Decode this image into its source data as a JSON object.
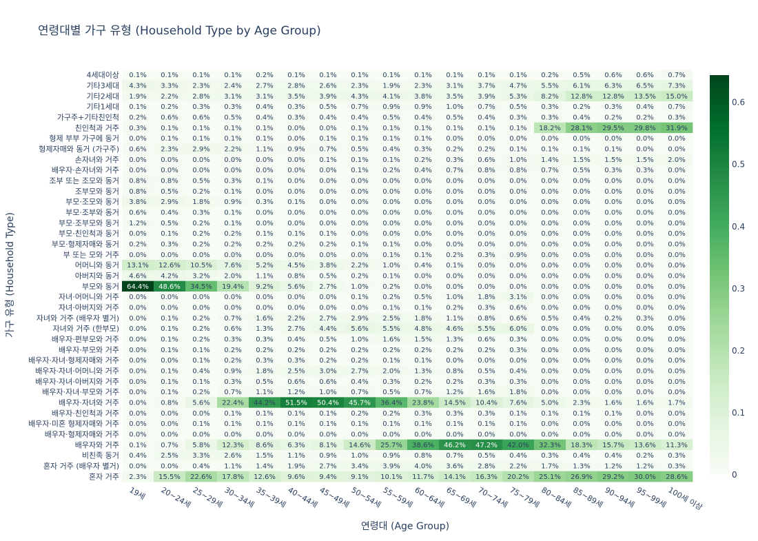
{
  "chart_data": {
    "type": "heatmap",
    "title": "연령대별 가구 유형 (Household Type by Age Group)",
    "xlabel": "연령대 (Age Group)",
    "ylabel": "가구 유형 (Household Type)",
    "x": [
      "19세",
      "20~24세",
      "25~29세",
      "30~34세",
      "35~39세",
      "40~44세",
      "45~49세",
      "50~54세",
      "55~59세",
      "60~64세",
      "65~69세",
      "70~74세",
      "75~79세",
      "80~84세",
      "85~89세",
      "90~94세",
      "95~99세",
      "100세 이상"
    ],
    "y": [
      "4세대이상",
      "기타3세대",
      "기타2세대",
      "기타1세대",
      "가구주+기타친인척",
      "친인척과 거주",
      "형제 부부 가구에 동거",
      "형제자매와 동거 (가구주)",
      "손자녀와 거주",
      "배우자·손자녀와 거주",
      "조부 또는 조모와 동거",
      "조부모와 동거",
      "부모·조모와 동거",
      "부모·조부와 동거",
      "부모·조부모와 동거",
      "부모·친인척과 동거",
      "부모·형제자매와 동거",
      "부 또는 모와 거주",
      "어머니와 동거",
      "아버지와 동거",
      "부모와 동거",
      "자녀·어머니와 거주",
      "자녀·아버지와 거주",
      "자녀와 거주 (배우자 별거)",
      "자녀와 거주 (한부모)",
      "배우자·편부모와 거주",
      "배우자·부모와 거주",
      "배우자·자녀·형제자매와 거주",
      "배우자·자녀·어머니와 거주",
      "배우자·자녀·아버지와 거주",
      "배우자·자녀·부모와 거주",
      "배우자·자녀와 거주",
      "배우자·친인척과 거주",
      "배우자·미혼 형제자매와 거주",
      "배우자·형제자매와 거주",
      "배우자와 거주",
      "비친족 동거",
      "혼자 거주 (배우자 별거)",
      "혼자 거주"
    ],
    "z": [
      [
        0.1,
        0.1,
        0.1,
        0.1,
        0.2,
        0.1,
        0.1,
        0.1,
        0.1,
        0.1,
        0.1,
        0.1,
        0.1,
        0.2,
        0.5,
        0.6,
        0.6,
        0.7
      ],
      [
        4.3,
        3.3,
        2.3,
        2.4,
        2.7,
        2.8,
        2.6,
        2.3,
        1.9,
        2.3,
        3.1,
        3.7,
        4.7,
        5.5,
        6.1,
        6.3,
        6.5,
        7.3
      ],
      [
        1.9,
        2.2,
        2.8,
        3.1,
        3.1,
        3.5,
        3.9,
        4.3,
        4.1,
        3.8,
        3.5,
        3.9,
        5.3,
        8.2,
        12.8,
        12.8,
        13.5,
        15.0
      ],
      [
        0.1,
        0.2,
        0.3,
        0.3,
        0.4,
        0.3,
        0.5,
        0.7,
        0.9,
        0.9,
        1.0,
        0.7,
        0.5,
        0.3,
        0.2,
        0.3,
        0.4,
        0.7
      ],
      [
        0.2,
        0.6,
        0.6,
        0.5,
        0.4,
        0.3,
        0.4,
        0.4,
        0.5,
        0.4,
        0.5,
        0.4,
        0.3,
        0.3,
        0.4,
        0.2,
        0.2,
        0.3
      ],
      [
        0.3,
        0.1,
        0.1,
        0.1,
        0.1,
        0.0,
        0.0,
        0.1,
        0.1,
        0.1,
        0.1,
        0.1,
        0.1,
        18.2,
        28.1,
        29.5,
        29.8,
        31.9
      ],
      [
        0.0,
        0.1,
        0.1,
        0.1,
        0.1,
        0.0,
        0.1,
        0.1,
        0.1,
        0.1,
        0.0,
        0.0,
        0.0,
        0.0,
        0.0,
        0.0,
        0.0,
        0.0
      ],
      [
        0.6,
        2.3,
        2.9,
        2.2,
        1.1,
        0.9,
        0.7,
        0.5,
        0.4,
        0.3,
        0.2,
        0.2,
        0.1,
        0.1,
        0.1,
        0.1,
        0.0,
        0.0
      ],
      [
        0.0,
        0.0,
        0.0,
        0.0,
        0.0,
        0.0,
        0.1,
        0.1,
        0.1,
        0.2,
        0.3,
        0.6,
        1.0,
        1.4,
        1.5,
        1.5,
        1.5,
        2.0
      ],
      [
        0.0,
        0.0,
        0.0,
        0.0,
        0.0,
        0.0,
        0.0,
        0.1,
        0.2,
        0.4,
        0.7,
        0.8,
        0.8,
        0.7,
        0.5,
        0.3,
        0.3,
        0.0
      ],
      [
        0.8,
        0.8,
        0.5,
        0.3,
        0.1,
        0.0,
        0.0,
        0.0,
        0.0,
        0.0,
        0.0,
        0.0,
        0.0,
        0.0,
        0.0,
        0.0,
        0.0,
        0.0
      ],
      [
        0.8,
        0.5,
        0.2,
        0.1,
        0.0,
        0.0,
        0.0,
        0.0,
        0.0,
        0.0,
        0.0,
        0.0,
        0.0,
        0.0,
        0.0,
        0.0,
        0.0,
        0.0
      ],
      [
        3.8,
        2.9,
        1.8,
        0.9,
        0.3,
        0.1,
        0.0,
        0.0,
        0.0,
        0.0,
        0.0,
        0.0,
        0.0,
        0.0,
        0.0,
        0.0,
        0.0,
        0.0
      ],
      [
        0.6,
        0.4,
        0.3,
        0.1,
        0.0,
        0.0,
        0.0,
        0.0,
        0.0,
        0.0,
        0.0,
        0.0,
        0.0,
        0.0,
        0.0,
        0.0,
        0.0,
        0.0
      ],
      [
        1.2,
        0.5,
        0.2,
        0.1,
        0.0,
        0.0,
        0.0,
        0.0,
        0.0,
        0.0,
        0.0,
        0.0,
        0.0,
        0.0,
        0.0,
        0.0,
        0.0,
        0.0
      ],
      [
        0.0,
        0.1,
        0.2,
        0.2,
        0.1,
        0.1,
        0.1,
        0.0,
        0.0,
        0.0,
        0.0,
        0.0,
        0.0,
        0.0,
        0.0,
        0.0,
        0.0,
        0.0
      ],
      [
        0.2,
        0.3,
        0.2,
        0.2,
        0.2,
        0.2,
        0.2,
        0.1,
        0.1,
        0.0,
        0.0,
        0.0,
        0.0,
        0.0,
        0.0,
        0.0,
        0.0,
        0.0
      ],
      [
        0.0,
        0.0,
        0.0,
        0.0,
        0.0,
        0.0,
        0.0,
        0.0,
        0.1,
        0.1,
        0.2,
        0.3,
        0.9,
        0.0,
        0.0,
        0.0,
        0.0,
        0.0
      ],
      [
        13.1,
        12.6,
        10.5,
        7.6,
        5.2,
        4.5,
        3.8,
        2.2,
        1.0,
        0.4,
        0.1,
        0.0,
        0.0,
        0.0,
        0.0,
        0.0,
        0.0,
        0.0
      ],
      [
        4.6,
        4.2,
        3.2,
        2.0,
        1.1,
        0.8,
        0.5,
        0.2,
        0.1,
        0.0,
        0.0,
        0.0,
        0.0,
        0.0,
        0.0,
        0.0,
        0.0,
        0.0
      ],
      [
        64.4,
        48.6,
        34.5,
        19.4,
        9.2,
        5.6,
        2.7,
        1.0,
        0.2,
        0.0,
        0.0,
        0.0,
        0.0,
        0.0,
        0.0,
        0.0,
        0.0,
        0.0
      ],
      [
        0.0,
        0.0,
        0.0,
        0.0,
        0.0,
        0.0,
        0.0,
        0.1,
        0.2,
        0.5,
        1.0,
        1.8,
        3.1,
        0.0,
        0.0,
        0.0,
        0.0,
        0.0
      ],
      [
        0.0,
        0.0,
        0.0,
        0.0,
        0.0,
        0.0,
        0.0,
        0.0,
        0.1,
        0.1,
        0.2,
        0.3,
        0.6,
        0.0,
        0.0,
        0.0,
        0.0,
        0.0
      ],
      [
        0.0,
        0.1,
        0.2,
        0.7,
        1.6,
        2.2,
        2.7,
        2.9,
        2.5,
        1.8,
        1.1,
        0.8,
        0.6,
        0.5,
        0.4,
        0.2,
        0.3,
        0.0
      ],
      [
        0.0,
        0.1,
        0.2,
        0.6,
        1.3,
        2.7,
        4.4,
        5.6,
        5.5,
        4.8,
        4.6,
        5.5,
        6.0,
        0.0,
        0.0,
        0.0,
        0.0,
        0.0
      ],
      [
        0.0,
        0.1,
        0.2,
        0.3,
        0.3,
        0.4,
        0.5,
        1.0,
        1.6,
        1.5,
        1.3,
        0.6,
        0.3,
        0.0,
        0.0,
        0.0,
        0.0,
        0.0
      ],
      [
        0.0,
        0.1,
        0.1,
        0.2,
        0.2,
        0.2,
        0.2,
        0.2,
        0.2,
        0.2,
        0.2,
        0.2,
        0.3,
        0.0,
        0.0,
        0.0,
        0.0,
        0.0
      ],
      [
        0.0,
        0.0,
        0.1,
        0.2,
        0.3,
        0.3,
        0.2,
        0.2,
        0.1,
        0.1,
        0.0,
        0.0,
        0.0,
        0.0,
        0.0,
        0.0,
        0.0,
        0.0
      ],
      [
        0.0,
        0.1,
        0.4,
        0.9,
        1.8,
        2.5,
        3.0,
        2.7,
        2.0,
        1.3,
        0.8,
        0.5,
        0.4,
        0.0,
        0.0,
        0.0,
        0.0,
        0.0
      ],
      [
        0.0,
        0.1,
        0.1,
        0.3,
        0.5,
        0.6,
        0.6,
        0.4,
        0.3,
        0.2,
        0.2,
        0.3,
        0.3,
        0.0,
        0.0,
        0.0,
        0.0,
        0.0
      ],
      [
        0.0,
        0.1,
        0.2,
        0.7,
        1.1,
        1.2,
        1.0,
        0.7,
        0.5,
        0.7,
        1.2,
        1.6,
        1.8,
        0.0,
        0.0,
        0.0,
        0.0,
        0.0
      ],
      [
        0.0,
        0.8,
        5.6,
        22.4,
        44.2,
        51.5,
        50.4,
        45.7,
        36.4,
        23.8,
        14.5,
        10.4,
        7.6,
        5.0,
        2.3,
        1.6,
        1.6,
        1.7
      ],
      [
        0.0,
        0.0,
        0.0,
        0.1,
        0.1,
        0.1,
        0.1,
        0.2,
        0.2,
        0.3,
        0.3,
        0.3,
        0.1,
        0.1,
        0.1,
        0.1,
        0.0,
        0.0
      ],
      [
        0.0,
        0.0,
        0.1,
        0.1,
        0.1,
        0.1,
        0.1,
        0.1,
        0.1,
        0.1,
        0.1,
        0.1,
        0.1,
        0.0,
        0.0,
        0.0,
        0.0,
        0.0
      ],
      [
        0.0,
        0.0,
        0.0,
        0.0,
        0.0,
        0.0,
        0.0,
        0.0,
        0.0,
        0.0,
        0.0,
        0.0,
        0.0,
        0.0,
        0.0,
        0.0,
        0.0,
        0.0
      ],
      [
        0.1,
        0.7,
        5.8,
        12.3,
        8.6,
        6.3,
        8.1,
        14.6,
        25.7,
        38.6,
        46.2,
        47.2,
        42.0,
        32.3,
        18.3,
        15.7,
        13.6,
        11.3
      ],
      [
        0.4,
        2.5,
        3.3,
        2.6,
        1.5,
        1.1,
        0.9,
        1.0,
        0.9,
        0.8,
        0.7,
        0.5,
        0.4,
        0.3,
        0.4,
        0.4,
        0.2,
        0.3
      ],
      [
        0.0,
        0.0,
        0.4,
        1.1,
        1.4,
        1.9,
        2.7,
        3.4,
        3.9,
        4.0,
        3.6,
        2.8,
        2.2,
        1.7,
        1.3,
        1.2,
        1.2,
        0.3
      ],
      [
        2.3,
        15.5,
        22.6,
        17.8,
        12.6,
        9.6,
        9.4,
        9.1,
        10.1,
        11.7,
        14.1,
        16.3,
        20.2,
        25.1,
        26.9,
        29.2,
        30.0,
        28.6
      ]
    ],
    "value_unit": "%",
    "colorscale": "Greens",
    "zmin": 0,
    "zmax": 0.644,
    "colorbar_ticks": [
      "0",
      "0.1",
      "0.2",
      "0.3",
      "0.4",
      "0.5",
      "0.6"
    ],
    "colorbar_tick_values": [
      0,
      0.1,
      0.2,
      0.3,
      0.4,
      0.5,
      0.6
    ],
    "colors": {
      "scale": [
        "#f7fcf5",
        "#e5f5e0",
        "#c7e9c0",
        "#a1d99b",
        "#74c476",
        "#41ab5d",
        "#238b45",
        "#006d2c",
        "#00441b"
      ],
      "text_dark": "#2a3f5f",
      "text_light": "#ffffff"
    }
  }
}
